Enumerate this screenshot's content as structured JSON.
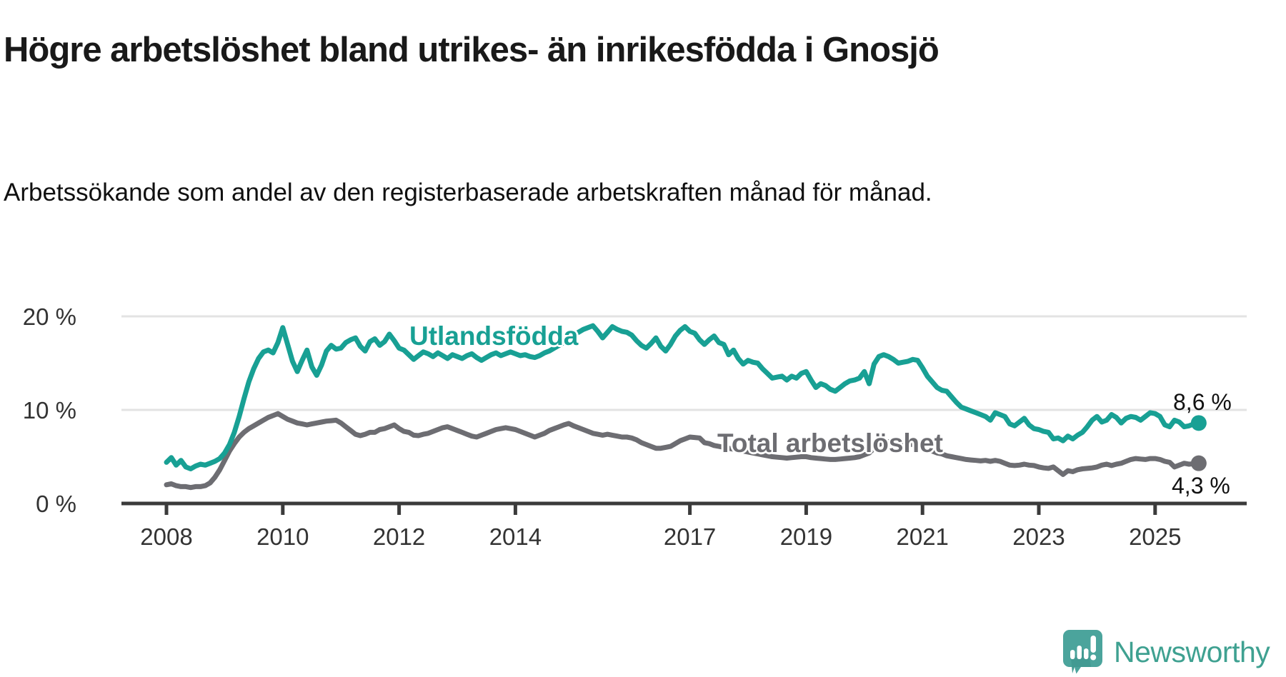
{
  "title": "Högre arbetslöshet bland utrikes- än inrikesfödda i Gnosjö",
  "subtitle": "Arbetssökande som andel av den registerbaserade arbetskraften månad för månad.",
  "brand": {
    "name": "Newsworthy",
    "icon": "newsworthy-speech-bubble-bar-chart-icon",
    "text_color": "#3fa191",
    "bubble_color": "#4ba49c"
  },
  "chart_data": {
    "type": "line",
    "unit": "%",
    "grid": "horizontal-only",
    "x_start_year": 2008,
    "x_step_months": 1,
    "ylim": [
      0,
      21.5
    ],
    "y_ticks": [
      {
        "value": 0,
        "label": "0 %"
      },
      {
        "value": 10,
        "label": "10 %"
      },
      {
        "value": 20,
        "label": "20 %"
      }
    ],
    "x_ticks": [
      {
        "value": 2008,
        "label": "2008"
      },
      {
        "value": 2010,
        "label": "2010"
      },
      {
        "value": 2012,
        "label": "2012"
      },
      {
        "value": 2014,
        "label": "2014"
      },
      {
        "value": 2017,
        "label": "2017"
      },
      {
        "value": 2019,
        "label": "2019"
      },
      {
        "value": 2021,
        "label": "2021"
      },
      {
        "value": 2023,
        "label": "2023"
      },
      {
        "value": 2025,
        "label": "2025"
      }
    ],
    "series": [
      {
        "name": "Utlandsfödda",
        "inline_label": "Utlandsfödda",
        "end_label": "8,6 %",
        "last_value": 8.6,
        "color": "#18a094",
        "values": [
          4.4,
          4.9,
          4.1,
          4.6,
          3.9,
          3.7,
          4.0,
          4.2,
          4.1,
          4.3,
          4.5,
          4.8,
          5.4,
          6.3,
          7.6,
          9.3,
          11.2,
          13.0,
          14.4,
          15.5,
          16.2,
          16.4,
          16.1,
          17.2,
          18.8,
          17.0,
          15.2,
          14.1,
          15.3,
          16.4,
          14.6,
          13.7,
          14.8,
          16.3,
          16.9,
          16.5,
          16.6,
          17.2,
          17.5,
          17.7,
          16.8,
          16.3,
          17.3,
          17.6,
          16.9,
          17.3,
          18.1,
          17.4,
          16.6,
          16.4,
          15.9,
          15.4,
          15.8,
          16.2,
          16.0,
          15.7,
          16.1,
          15.8,
          15.5,
          15.9,
          15.7,
          15.5,
          15.8,
          16.0,
          15.6,
          15.3,
          15.6,
          15.9,
          16.1,
          15.8,
          16.0,
          16.2,
          16.0,
          15.8,
          15.9,
          15.7,
          15.6,
          15.8,
          16.1,
          16.3,
          16.6,
          16.9,
          17.2,
          17.6,
          18.0,
          18.3,
          18.6,
          18.8,
          19.0,
          18.4,
          17.7,
          18.3,
          18.9,
          18.6,
          18.4,
          18.3,
          18.0,
          17.4,
          16.9,
          16.6,
          17.1,
          17.7,
          16.8,
          16.3,
          17.0,
          17.9,
          18.5,
          18.9,
          18.4,
          18.2,
          17.5,
          17.0,
          17.5,
          17.9,
          17.2,
          17.0,
          15.9,
          16.4,
          15.5,
          14.9,
          15.3,
          15.1,
          15.0,
          14.4,
          13.9,
          13.4,
          13.5,
          13.6,
          13.2,
          13.6,
          13.4,
          13.9,
          14.1,
          13.2,
          12.4,
          12.8,
          12.6,
          12.2,
          12.0,
          12.4,
          12.8,
          13.1,
          13.2,
          13.4,
          14.1,
          12.8,
          14.9,
          15.7,
          15.9,
          15.7,
          15.4,
          15.0,
          15.1,
          15.2,
          15.4,
          15.3,
          14.5,
          13.6,
          13.0,
          12.4,
          12.1,
          12.0,
          11.4,
          10.8,
          10.3,
          10.1,
          9.9,
          9.7,
          9.5,
          9.3,
          8.9,
          9.7,
          9.5,
          9.3,
          8.5,
          8.3,
          8.7,
          9.1,
          8.4,
          8.0,
          7.9,
          7.7,
          7.6,
          6.9,
          7.0,
          6.7,
          7.2,
          6.9,
          7.3,
          7.6,
          8.2,
          8.9,
          9.3,
          8.7,
          8.9,
          9.5,
          9.2,
          8.6,
          9.1,
          9.3,
          9.2,
          8.9,
          9.3,
          9.7,
          9.6,
          9.3,
          8.4,
          8.2,
          8.9,
          8.7,
          8.2,
          8.3,
          8.5,
          8.6
        ]
      },
      {
        "name": "Total arbetslöshet",
        "inline_label": "Total arbetslöshet",
        "end_label": "4,3 %",
        "last_value": 4.3,
        "color": "#6d6d72",
        "values": [
          2.0,
          2.1,
          1.9,
          1.8,
          1.8,
          1.7,
          1.8,
          1.8,
          1.9,
          2.2,
          2.8,
          3.6,
          4.6,
          5.6,
          6.4,
          7.1,
          7.6,
          8.0,
          8.3,
          8.6,
          8.9,
          9.2,
          9.4,
          9.6,
          9.3,
          9.0,
          8.8,
          8.6,
          8.5,
          8.4,
          8.5,
          8.6,
          8.7,
          8.8,
          8.85,
          8.9,
          8.6,
          8.2,
          7.8,
          7.4,
          7.25,
          7.4,
          7.6,
          7.6,
          7.9,
          8.0,
          8.2,
          8.4,
          8.0,
          7.7,
          7.6,
          7.3,
          7.25,
          7.4,
          7.5,
          7.7,
          7.9,
          8.1,
          8.2,
          8.0,
          7.8,
          7.6,
          7.4,
          7.2,
          7.1,
          7.3,
          7.5,
          7.7,
          7.9,
          8.0,
          8.1,
          8.0,
          7.9,
          7.7,
          7.5,
          7.3,
          7.1,
          7.3,
          7.5,
          7.8,
          8.0,
          8.2,
          8.4,
          8.55,
          8.3,
          8.1,
          7.9,
          7.7,
          7.5,
          7.4,
          7.3,
          7.4,
          7.3,
          7.2,
          7.1,
          7.1,
          7.0,
          6.8,
          6.5,
          6.3,
          6.1,
          5.9,
          5.9,
          6.0,
          6.1,
          6.4,
          6.7,
          6.9,
          7.1,
          7.05,
          7.0,
          6.5,
          6.4,
          6.2,
          6.1,
          6.0,
          5.9,
          5.8,
          5.7,
          5.6,
          5.5,
          5.4,
          5.3,
          5.2,
          5.1,
          5.0,
          4.95,
          4.9,
          4.85,
          4.9,
          4.95,
          5.0,
          5.0,
          4.9,
          4.85,
          4.8,
          4.75,
          4.7,
          4.7,
          4.75,
          4.8,
          4.85,
          4.9,
          5.0,
          5.2,
          5.4,
          5.9,
          6.3,
          6.5,
          6.6,
          6.6,
          6.5,
          6.4,
          6.35,
          6.3,
          6.2,
          6.0,
          5.8,
          5.6,
          5.4,
          5.3,
          5.1,
          5.0,
          4.9,
          4.8,
          4.7,
          4.65,
          4.6,
          4.55,
          4.6,
          4.5,
          4.6,
          4.5,
          4.3,
          4.1,
          4.05,
          4.1,
          4.2,
          4.1,
          4.05,
          3.9,
          3.8,
          3.75,
          3.9,
          3.5,
          3.1,
          3.5,
          3.4,
          3.6,
          3.7,
          3.75,
          3.8,
          3.9,
          4.1,
          4.2,
          4.05,
          4.2,
          4.3,
          4.5,
          4.7,
          4.8,
          4.75,
          4.7,
          4.8,
          4.8,
          4.7,
          4.5,
          4.4,
          3.9,
          4.1,
          4.3,
          4.2,
          4.25,
          4.3
        ]
      }
    ]
  }
}
